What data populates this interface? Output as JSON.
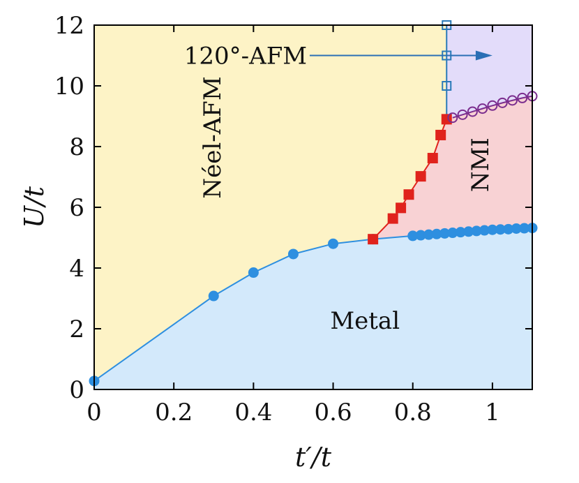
{
  "chart_data": {
    "type": "scatter",
    "title": "",
    "xlabel": "t′/t",
    "ylabel": "U/t",
    "xlim": [
      0,
      1.1
    ],
    "ylim": [
      0,
      12
    ],
    "xticks": [
      0,
      0.2,
      0.4,
      0.6,
      0.8,
      1
    ],
    "xtick_labels": [
      "0",
      "0.2",
      "0.4",
      "0.6",
      "0.8",
      "1"
    ],
    "yticks": [
      0,
      2,
      4,
      6,
      8,
      10,
      12
    ],
    "ytick_labels": [
      "0",
      "2",
      "4",
      "6",
      "8",
      "10",
      "12"
    ],
    "grid": false,
    "regions": [
      {
        "label": "Néel-AFM",
        "color": "#fdf3c6"
      },
      {
        "label": "Metal",
        "color": "#d3e9fb"
      },
      {
        "label": "NMI",
        "color": "#f8d2d4"
      },
      {
        "label": "120°-AFM",
        "color": "#e3dcfa"
      }
    ],
    "series": [
      {
        "marker": "filled-circle",
        "color": "#2e8fe0",
        "x": [
          0.0,
          0.3,
          0.4,
          0.5,
          0.6,
          0.7,
          0.8,
          0.82,
          0.84,
          0.86,
          0.88,
          0.9,
          0.92,
          0.94,
          0.96,
          0.98,
          1.0,
          1.02,
          1.04,
          1.06,
          1.08,
          1.1
        ],
        "y": [
          0.28,
          3.08,
          3.85,
          4.46,
          4.8,
          4.95,
          5.06,
          5.08,
          5.1,
          5.12,
          5.14,
          5.16,
          5.18,
          5.2,
          5.22,
          5.24,
          5.26,
          5.27,
          5.28,
          5.3,
          5.31,
          5.32
        ]
      },
      {
        "marker": "filled-square",
        "color": "#e0231c",
        "x": [
          0.7,
          0.75,
          0.77,
          0.79,
          0.82,
          0.85,
          0.87,
          0.885
        ],
        "y": [
          4.95,
          5.63,
          5.98,
          6.42,
          7.02,
          7.62,
          8.38,
          8.9
        ]
      },
      {
        "marker": "open-square",
        "color": "#2a7ab8",
        "x": [
          0.885,
          0.885,
          0.885
        ],
        "y": [
          10.0,
          11.0,
          12.0
        ]
      },
      {
        "marker": "open-circle",
        "color": "#7b2d8e",
        "x": [
          0.9,
          0.925,
          0.95,
          0.975,
          1.0,
          1.025,
          1.05,
          1.075,
          1.1
        ],
        "y": [
          8.95,
          9.05,
          9.15,
          9.25,
          9.35,
          9.44,
          9.52,
          9.6,
          9.66
        ]
      }
    ],
    "annotations": [
      {
        "text": "120°-AFM",
        "x": 0.38,
        "y": 11.0,
        "arrow_to": [
          1.0,
          11.0
        ],
        "arrow_color": "#2a6fb5"
      }
    ]
  }
}
